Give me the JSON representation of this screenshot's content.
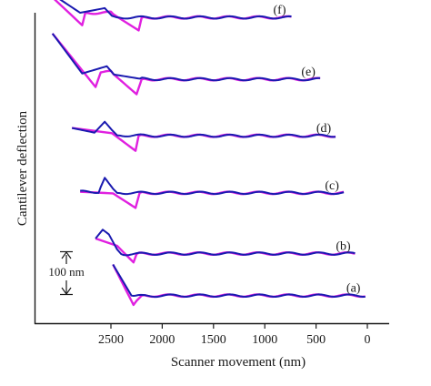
{
  "chart_data": {
    "type": "line",
    "title": "",
    "xlabel": "Scanner movement (nm)",
    "ylabel": "Cantilever deflection",
    "xlim": [
      3150,
      -120
    ],
    "x_ticks": [
      {
        "value": 2500,
        "label": "2500"
      },
      {
        "value": 2000,
        "label": "2000"
      },
      {
        "value": 1500,
        "label": "1500"
      },
      {
        "value": 1000,
        "label": "1000"
      },
      {
        "value": 500,
        "label": "500"
      },
      {
        "value": 0,
        "label": "0"
      }
    ],
    "y_unit": "nm",
    "y_offset_step_nm": 52,
    "scale_bar": {
      "value_nm": 100,
      "label": "100 nm"
    },
    "grid": false,
    "series_colors": {
      "approach": "#1a1ab0",
      "retract": "#e020e0"
    },
    "curves": [
      {
        "label": "(a)",
        "offset_nm": 0,
        "approach": [
          [
            2480,
            43
          ],
          [
            2300,
            -17
          ],
          [
            2260,
            -18
          ],
          [
            2000,
            -17
          ],
          [
            1500,
            -17
          ],
          [
            1000,
            -17
          ],
          [
            500,
            -17
          ],
          [
            20,
            -17
          ]
        ],
        "retract": [
          [
            2480,
            43
          ],
          [
            2280,
            -35
          ],
          [
            2250,
            -27
          ],
          [
            2200,
            -17
          ],
          [
            1500,
            -17
          ],
          [
            1000,
            -17
          ],
          [
            500,
            -17
          ],
          [
            20,
            -17
          ]
        ]
      },
      {
        "label": "(b)",
        "offset_nm": 52,
        "approach": [
          [
            2650,
            41
          ],
          [
            2580,
            58
          ],
          [
            2520,
            49
          ],
          [
            2440,
            20
          ],
          [
            2400,
            11
          ],
          [
            2000,
            12
          ],
          [
            1500,
            12
          ],
          [
            1000,
            12
          ],
          [
            500,
            12
          ],
          [
            120,
            12
          ]
        ],
        "retract": [
          [
            2650,
            41
          ],
          [
            2440,
            27
          ],
          [
            2280,
            -5
          ],
          [
            2250,
            11
          ],
          [
            2200,
            12
          ],
          [
            1500,
            12
          ],
          [
            1000,
            12
          ],
          [
            500,
            12
          ],
          [
            120,
            12
          ]
        ]
      },
      {
        "label": "(c)",
        "offset_nm": 104,
        "approach": [
          [
            2800,
            79
          ],
          [
            2620,
            79
          ],
          [
            2560,
            106
          ],
          [
            2480,
            85
          ],
          [
            2440,
            77
          ],
          [
            2000,
            77
          ],
          [
            1500,
            77
          ],
          [
            1000,
            77
          ],
          [
            500,
            77
          ],
          [
            230,
            77
          ]
        ],
        "retract": [
          [
            2800,
            79
          ],
          [
            2480,
            76
          ],
          [
            2260,
            48
          ],
          [
            2220,
            77
          ],
          [
            1500,
            77
          ],
          [
            1000,
            77
          ],
          [
            500,
            77
          ],
          [
            230,
            77
          ]
        ]
      },
      {
        "label": "(d)",
        "offset_nm": 156,
        "approach": [
          [
            2880,
            150
          ],
          [
            2660,
            141
          ],
          [
            2560,
            162
          ],
          [
            2490,
            146
          ],
          [
            2440,
            136
          ],
          [
            2000,
            135
          ],
          [
            1500,
            135
          ],
          [
            1000,
            135
          ],
          [
            500,
            135
          ],
          [
            310,
            135
          ]
        ],
        "retract": [
          [
            2880,
            150
          ],
          [
            2490,
            140
          ],
          [
            2260,
            106
          ],
          [
            2230,
            135
          ],
          [
            1500,
            135
          ],
          [
            1000,
            135
          ],
          [
            500,
            135
          ],
          [
            310,
            135
          ]
        ]
      },
      {
        "label": "(e)",
        "offset_nm": 208,
        "approach": [
          [
            3070,
            280
          ],
          [
            2780,
            203
          ],
          [
            2540,
            217
          ],
          [
            2470,
            201
          ],
          [
            2220,
            193
          ],
          [
            2000,
            192
          ],
          [
            1500,
            192
          ],
          [
            1000,
            192
          ],
          [
            500,
            192
          ],
          [
            460,
            192
          ]
        ],
        "retract": [
          [
            3070,
            280
          ],
          [
            2650,
            177
          ],
          [
            2600,
            205
          ],
          [
            2500,
            206
          ],
          [
            2250,
            163
          ],
          [
            2200,
            192
          ],
          [
            1500,
            192
          ],
          [
            1000,
            192
          ],
          [
            460,
            192
          ]
        ]
      },
      {
        "label": "(f)",
        "offset_nm": 260,
        "approach": [
          [
            3180,
            318
          ],
          [
            2800,
            268
          ],
          [
            2560,
            277
          ],
          [
            2490,
            262
          ],
          [
            2440,
            259
          ],
          [
            2000,
            259
          ],
          [
            1500,
            259
          ],
          [
            1000,
            259
          ],
          [
            740,
            259
          ]
        ],
        "retract": [
          [
            3180,
            318
          ],
          [
            2780,
            244
          ],
          [
            2750,
            268
          ],
          [
            2500,
            268
          ],
          [
            2230,
            234
          ],
          [
            2200,
            259
          ],
          [
            1500,
            259
          ],
          [
            1000,
            259
          ],
          [
            740,
            259
          ]
        ]
      }
    ]
  }
}
